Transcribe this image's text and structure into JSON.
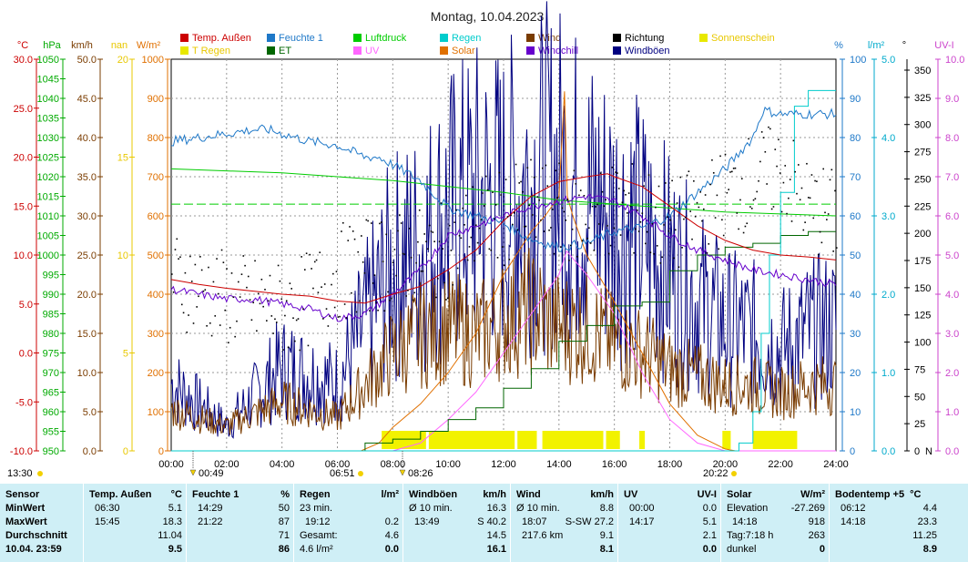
{
  "chart_data": {
    "type": "line",
    "title": "Montag, 10.04.2023",
    "x_labels": [
      "00:00",
      "02:00",
      "04:00",
      "06:00",
      "08:00",
      "10:00",
      "12:00",
      "14:00",
      "16:00",
      "18:00",
      "20:00",
      "22:00",
      "24:00"
    ],
    "legend": [
      {
        "name": "Temp. Außen",
        "color": "#cc0000"
      },
      {
        "name": "Feuchte 1",
        "color": "#1e78c8"
      },
      {
        "name": "Luftdruck",
        "color": "#00cc00"
      },
      {
        "name": "Regen",
        "color": "#00cccc"
      },
      {
        "name": "Wind",
        "color": "#7a3c00"
      },
      {
        "name": "Richtung",
        "color": "#000000"
      },
      {
        "name": "Sonnenschein",
        "color": "#e8e800"
      },
      {
        "name": "T Regen",
        "color": "#e8e800"
      },
      {
        "name": "ET",
        "color": "#006600"
      },
      {
        "name": "UV",
        "color": "#ff66ff"
      },
      {
        "name": "Solar",
        "color": "#e07000"
      },
      {
        "name": "Windchill",
        "color": "#6600cc"
      },
      {
        "name": "Windböen",
        "color": "#000080"
      }
    ],
    "left_axes": [
      {
        "unit": "°C",
        "color": "#cc0000",
        "ticks": [
          "30.0",
          "25.0",
          "20.0",
          "15.0",
          "10.0",
          "5.0",
          "0.0",
          "-5.0",
          "-10.0"
        ]
      },
      {
        "unit": "hPa",
        "color": "#00aa00",
        "ticks": [
          "1050",
          "1045",
          "1040",
          "1035",
          "1030",
          "1025",
          "1020",
          "1015",
          "1010",
          "1005",
          "1000",
          "995",
          "990",
          "985",
          "980",
          "975",
          "970",
          "965",
          "960",
          "955",
          "950"
        ]
      },
      {
        "unit": "km/h",
        "color": "#7a3c00",
        "ticks": [
          "50.0",
          "45.0",
          "40.0",
          "35.0",
          "30.0",
          "25.0",
          "20.0",
          "15.0",
          "10.0",
          "5.0",
          "0.0"
        ]
      },
      {
        "unit": "nan",
        "color": "#e8c800",
        "ticks": [
          "20",
          "15",
          "10",
          "5",
          "0"
        ]
      },
      {
        "unit": "W/m²",
        "color": "#e07000",
        "ticks": [
          "1000",
          "900",
          "800",
          "700",
          "600",
          "500",
          "400",
          "300",
          "200",
          "100",
          "0"
        ]
      }
    ],
    "right_axes": [
      {
        "unit": "%",
        "color": "#1e78c8",
        "ticks": [
          "100",
          "90",
          "80",
          "70",
          "60",
          "50",
          "40",
          "30",
          "20",
          "10",
          "0"
        ]
      },
      {
        "unit": "l/m²",
        "color": "#00aacc",
        "ticks": [
          "5.0",
          "4.0",
          "3.0",
          "2.0",
          "1.0",
          "0.0"
        ]
      },
      {
        "unit": "°",
        "color": "#000000",
        "ticks": [
          "350",
          "325",
          "300",
          "275",
          "250",
          "225",
          "200",
          "175",
          "150",
          "125",
          "100",
          "75",
          "50",
          "25",
          "0"
        ],
        "north": "N"
      },
      {
        "unit": "UV-I",
        "color": "#cc44cc",
        "ticks": [
          "10.0",
          "9.0",
          "8.0",
          "7.0",
          "6.0",
          "5.0",
          "4.0",
          "3.0",
          "2.0",
          "1.0",
          "0.0"
        ]
      }
    ],
    "series": [
      {
        "name": "Temp. Außen",
        "unit": "°C",
        "x_hours": [
          0,
          1,
          2,
          3,
          4,
          5,
          6,
          7,
          8,
          9,
          10,
          11,
          12,
          13,
          14,
          15,
          15.75,
          16,
          17,
          18,
          19,
          20,
          21,
          22,
          23,
          24
        ],
        "values": [
          7.5,
          7.0,
          6.6,
          6.3,
          6.0,
          5.8,
          5.3,
          5.1,
          6.0,
          6.8,
          8.5,
          10.5,
          13.5,
          16.0,
          17.5,
          18.0,
          18.3,
          18.0,
          17.0,
          15.0,
          13.0,
          11.5,
          10.5,
          10.0,
          9.8,
          9.5
        ]
      },
      {
        "name": "Feuchte 1",
        "unit": "%",
        "x_hours": [
          0,
          1,
          2,
          3,
          3.5,
          4,
          5,
          6,
          7,
          7.5,
          8,
          9,
          10,
          11,
          12,
          13,
          14,
          15,
          16,
          17,
          18,
          19,
          20,
          21,
          21.37,
          22,
          23,
          24
        ],
        "values": [
          79,
          80,
          81,
          82,
          82,
          81,
          79,
          78,
          75,
          75,
          73,
          69,
          62,
          60,
          58,
          54,
          52,
          53,
          56,
          57,
          60,
          66,
          72,
          80,
          87,
          86,
          86,
          86
        ]
      },
      {
        "name": "Luftdruck",
        "unit": "hPa",
        "x_hours": [
          0,
          2,
          4,
          6,
          8,
          10,
          12,
          14,
          16,
          18,
          20,
          22,
          24
        ],
        "values": [
          1022,
          1021.5,
          1021,
          1020,
          1019,
          1017.5,
          1016,
          1014,
          1013,
          1012,
          1011,
          1010.5,
          1010
        ]
      },
      {
        "name": "Luftdruck Mittel",
        "unit": "hPa",
        "x_hours": [
          0,
          24
        ],
        "values": [
          1013,
          1013
        ]
      },
      {
        "name": "Regen",
        "unit": "l/m²",
        "x_hours": [
          0,
          18,
          19,
          19.5,
          20,
          20.5,
          21,
          21.3,
          21.6,
          22,
          22.5,
          23,
          23.2,
          24
        ],
        "values": [
          0,
          0,
          0,
          0,
          0,
          0.1,
          0.5,
          1.5,
          2.5,
          3.3,
          4.4,
          4.6,
          4.6,
          4.6
        ]
      },
      {
        "name": "ET",
        "unit": "l/m²",
        "x_hours": [
          0,
          5,
          7,
          8,
          9,
          10,
          11,
          12,
          13,
          14,
          15,
          16,
          17,
          18,
          19,
          20,
          21,
          22,
          23,
          24
        ],
        "values": [
          0,
          0,
          0.1,
          0.15,
          0.25,
          0.4,
          0.55,
          0.8,
          1.05,
          1.4,
          1.6,
          1.85,
          1.9,
          2.3,
          2.5,
          2.6,
          2.65,
          2.75,
          2.8,
          2.8
        ]
      },
      {
        "name": "Windchill",
        "unit": "°C",
        "x_hours": [
          0,
          1,
          2,
          3,
          4,
          5,
          6,
          7,
          8,
          9,
          10,
          11,
          12,
          13,
          14,
          15,
          16,
          17,
          18,
          19,
          20,
          21,
          22,
          23,
          24
        ],
        "values": [
          6.5,
          6.0,
          5.5,
          5.5,
          5.0,
          4.5,
          3.5,
          4.0,
          6.0,
          8.5,
          12.0,
          13.0,
          14.0,
          15.0,
          15.5,
          16.0,
          15.5,
          14.0,
          12.0,
          10.5,
          9.5,
          8.5,
          8.0,
          7.5,
          7.0
        ]
      },
      {
        "name": "Richtung",
        "unit": "°",
        "x_hours": [
          0,
          1,
          2,
          3,
          4,
          5,
          6,
          7,
          8,
          9,
          10,
          11,
          12,
          13,
          14,
          15,
          16,
          17,
          18,
          19,
          20,
          21,
          22,
          23,
          24
        ],
        "values": [
          160,
          150,
          140,
          135,
          130,
          140,
          165,
          170,
          175,
          180,
          185,
          210,
          215,
          225,
          220,
          215,
          225,
          220,
          205,
          220,
          235,
          250,
          260,
          225,
          215
        ]
      },
      {
        "name": "Solar",
        "unit": "W/m²",
        "x_hours": [
          0,
          6.85,
          7.5,
          8,
          9,
          10,
          11,
          12,
          13,
          13.5,
          14,
          14.2,
          14.3,
          14.5,
          15,
          16,
          17,
          18,
          19,
          20,
          20.37,
          24
        ],
        "values": [
          0,
          0,
          20,
          60,
          120,
          200,
          300,
          450,
          560,
          600,
          650,
          918,
          650,
          600,
          500,
          380,
          250,
          120,
          40,
          5,
          0,
          0
        ]
      },
      {
        "name": "UV",
        "unit": "UV-I",
        "x_hours": [
          0,
          8,
          9,
          10,
          11,
          12,
          13,
          14,
          14.28,
          15,
          16,
          17,
          18,
          19,
          20,
          24
        ],
        "values": [
          0,
          0,
          0.2,
          0.8,
          1.5,
          2.5,
          3.5,
          4.5,
          5.1,
          4.5,
          3.5,
          2.0,
          0.8,
          0.2,
          0,
          0
        ]
      },
      {
        "name": "Wind",
        "unit": "km/h",
        "x_hours": [
          0,
          2,
          4,
          6,
          7,
          8,
          9,
          10,
          11,
          12,
          13,
          14,
          15,
          16,
          17,
          18,
          19,
          20,
          21,
          22,
          23,
          24
        ],
        "values": [
          5,
          3,
          6,
          4,
          8,
          12,
          14,
          15,
          14,
          16,
          17,
          15,
          15,
          13,
          12,
          10,
          9,
          8,
          8,
          7,
          8,
          8
        ]
      },
      {
        "name": "Windböen",
        "unit": "km/h",
        "x_hours": [
          0,
          2,
          4,
          6,
          7,
          8,
          9,
          10,
          11,
          12,
          13,
          14,
          15,
          16,
          17,
          18,
          19,
          20,
          21,
          22,
          23,
          24
        ],
        "values": [
          8,
          3,
          10,
          8,
          15,
          22,
          24,
          28,
          30,
          30,
          32,
          33,
          30,
          28,
          26,
          22,
          18,
          15,
          14,
          12,
          14,
          15
        ]
      }
    ]
  },
  "markers": [
    {
      "label": "13:30",
      "time": "13:30",
      "kind": "moonrise"
    },
    {
      "label": "00:49",
      "time": "00:49",
      "kind": "moonset"
    },
    {
      "label": "06:51",
      "time": "06:51",
      "kind": "sunrise"
    },
    {
      "label": "08:26",
      "time": "08:26",
      "kind": "moon"
    },
    {
      "label": "20:22",
      "time": "20:22",
      "kind": "sunset"
    }
  ],
  "stats": {
    "sensor_col": {
      "header": "Sensor",
      "rows": [
        "MinWert",
        "MaxWert",
        "Durchschnitt",
        "10.04. 23:59"
      ]
    },
    "temp": {
      "title": "Temp. Außen",
      "unit": "°C",
      "min_time": "06:30",
      "min": "5.1",
      "max_time": "15:45",
      "max": "18.3",
      "avg": "11.04",
      "cur": "9.5"
    },
    "hum": {
      "title": "Feuchte 1",
      "unit": "%",
      "min_time": "14:29",
      "min": "50",
      "max_time": "21:22",
      "max": "87",
      "avg": "71",
      "cur": "86"
    },
    "rain": {
      "title": "Regen",
      "unit": "l/m²",
      "r1_label": "23 min.",
      "r1_val": "",
      "r2_label": "19:12",
      "r2_val": "0.2",
      "r3_label": "Gesamt:",
      "r3_val": "4.6",
      "r4_label": "4.6 l/m²",
      "cur": "0.0"
    },
    "gust": {
      "title": "Windböen",
      "unit": "km/h",
      "r1_label": "Ø 10 min.",
      "r1_val": "16.3",
      "r2_label": "13:49",
      "r2_val": "S 40.2",
      "avg": "14.5",
      "cur": "16.1"
    },
    "wind": {
      "title": "Wind",
      "unit": "km/h",
      "r1_label": "Ø 10 min.",
      "r1_val": "8.8",
      "r2_label": "18:07",
      "r2_mid": "S-SW",
      "r2_val": "27.2",
      "r3_label": "217.6 km",
      "r3_val": "9.1",
      "cur": "8.1"
    },
    "uv": {
      "title": "UV",
      "unit": "UV-I",
      "r1_label": "00:00",
      "r1_val": "0.0",
      "r2_label": "14:17",
      "r2_val": "5.1",
      "avg": "2.1",
      "cur": "0.0"
    },
    "solar": {
      "title": "Solar",
      "unit": "W/m²",
      "r1_label": "Elevation",
      "r1_val": "-27.269",
      "r2_label": "14:18",
      "r2_val": "918",
      "r3_label": "Tag:7:18 h",
      "r3_val": "263",
      "r4_label": "dunkel",
      "cur": "0"
    },
    "soil": {
      "title": "Bodentemp +5",
      "unit": "°C",
      "min_time": "06:12",
      "min": "4.4",
      "max_time": "14:18",
      "max": "23.3",
      "avg": "11.25",
      "cur": "8.9"
    }
  }
}
